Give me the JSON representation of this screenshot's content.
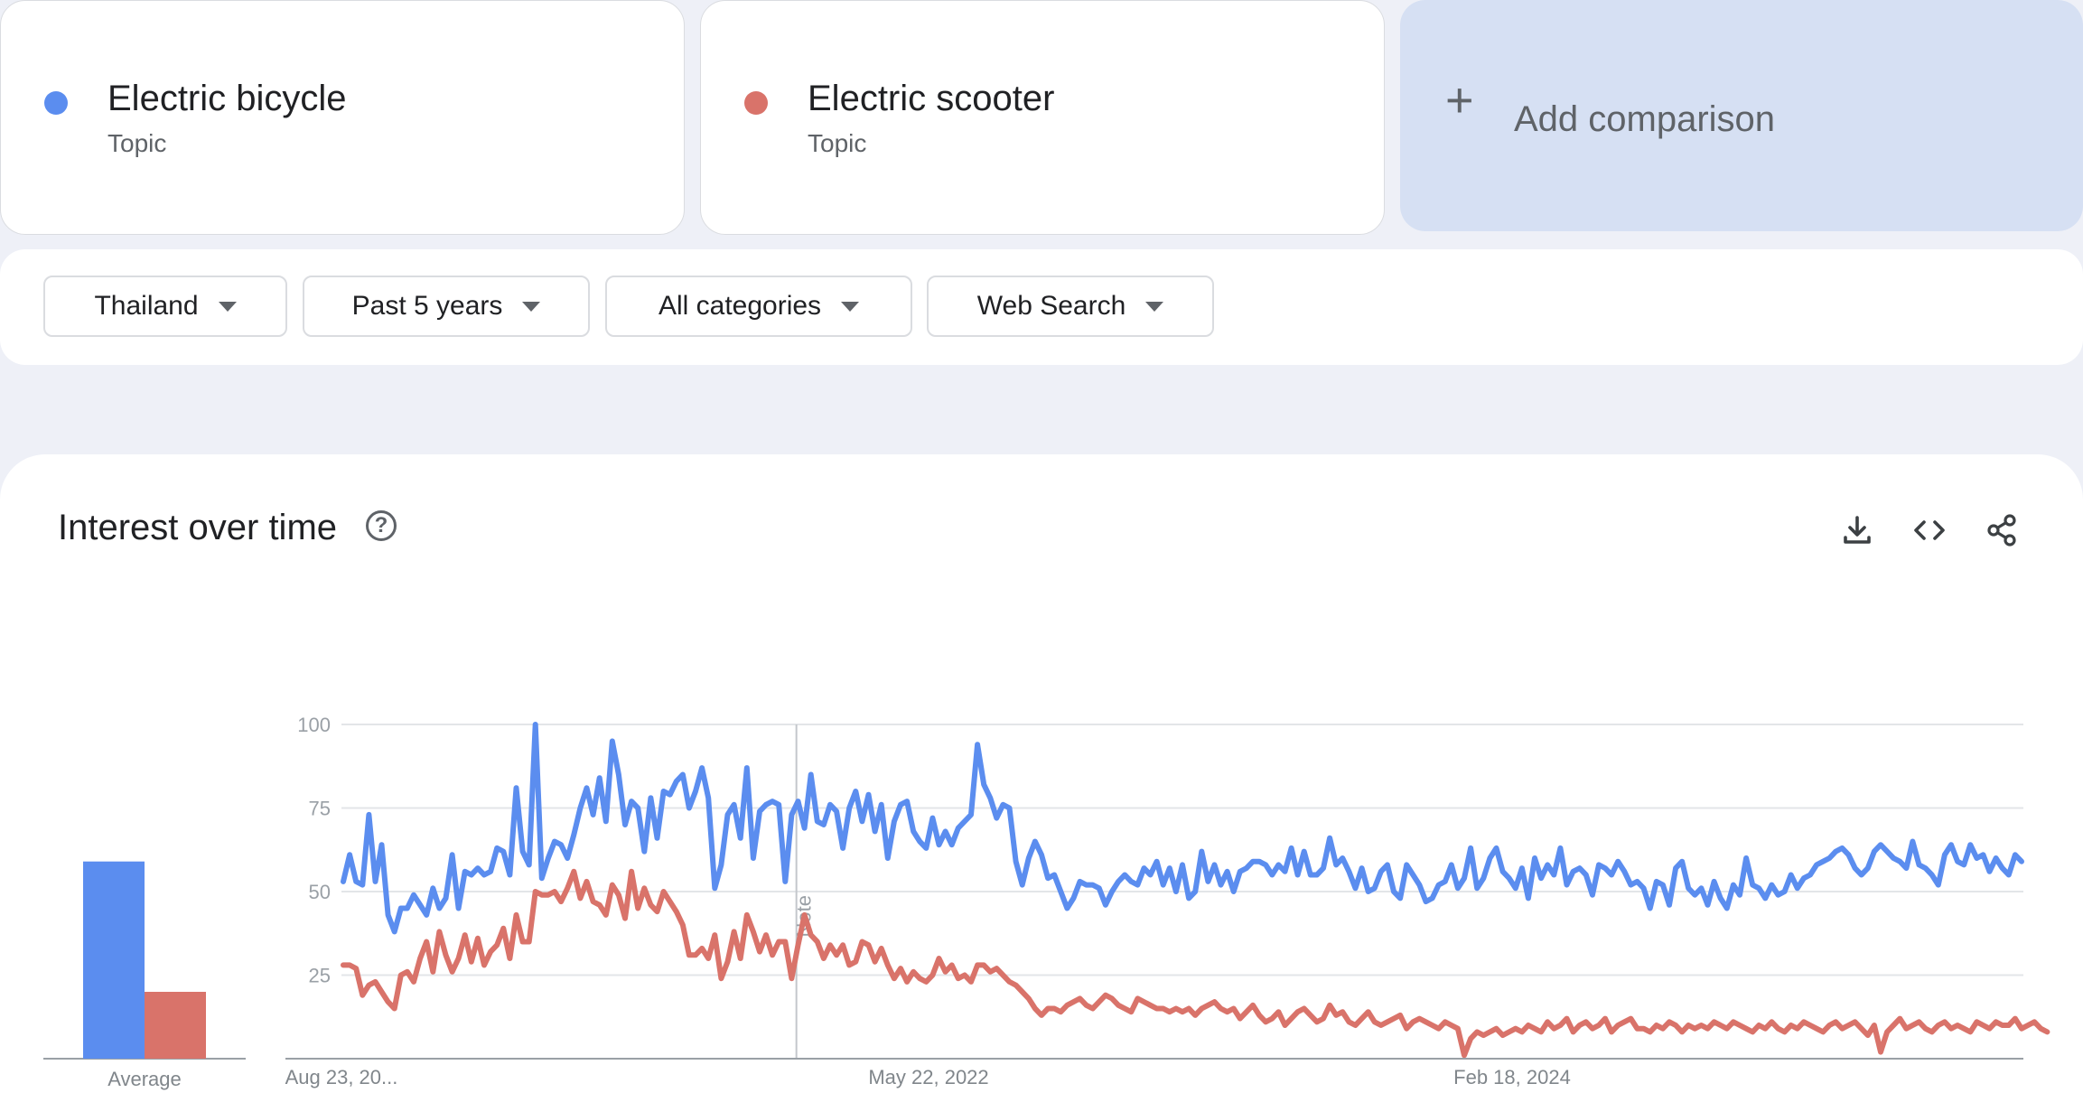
{
  "terms": [
    {
      "name": "Electric bicycle",
      "type": "Topic",
      "color": "#5b8def"
    },
    {
      "name": "Electric scooter",
      "type": "Topic",
      "color": "#d9736a"
    }
  ],
  "add_comparison": {
    "label": "Add comparison",
    "icon": "plus-icon"
  },
  "filters": [
    {
      "label": "Thailand"
    },
    {
      "label": "Past 5 years"
    },
    {
      "label": "All categories"
    },
    {
      "label": "Web Search"
    }
  ],
  "section": {
    "title": "Interest over time",
    "help_icon": "help-circle-icon",
    "help_glyph": "?",
    "tools": [
      "download-icon",
      "embed-code-icon",
      "share-icon"
    ]
  },
  "chart_data": {
    "type": "line",
    "y_ticks": [
      "25",
      "50",
      "75",
      "100"
    ],
    "ylim": [
      0,
      100
    ],
    "x_tick_labels": [
      "Aug 23, 20...",
      "May 22, 2022",
      "Feb 18, 2024"
    ],
    "note_label": "Note",
    "average_label": "Average",
    "averages": [
      59,
      20
    ],
    "series": [
      {
        "color": "#5b8def",
        "values": [
          53,
          61,
          53,
          52,
          73,
          53,
          64,
          43,
          38,
          45,
          45,
          49,
          46,
          43,
          51,
          45,
          48,
          61,
          45,
          56,
          55,
          57,
          55,
          56,
          63,
          62,
          55,
          81,
          62,
          58,
          100,
          54,
          60,
          65,
          64,
          60,
          67,
          75,
          81,
          73,
          84,
          71,
          95,
          85,
          70,
          77,
          75,
          62,
          78,
          66,
          80,
          79,
          83,
          85,
          75,
          80,
          87,
          78,
          51,
          58,
          73,
          76,
          66,
          87,
          60,
          74,
          76,
          77,
          76,
          53,
          73,
          77,
          69,
          85,
          71,
          70,
          76,
          74,
          63,
          75,
          80,
          71,
          79,
          68,
          76,
          60,
          71,
          76,
          77,
          68,
          65,
          63,
          72,
          64,
          68,
          64,
          69,
          71,
          73,
          94,
          82,
          78,
          72,
          76,
          75,
          59,
          52,
          60,
          65,
          61,
          54,
          55,
          50,
          45,
          48,
          53,
          52,
          52,
          51,
          46,
          50,
          53,
          55,
          53,
          52,
          57,
          55,
          59,
          52,
          57,
          50,
          58,
          48,
          50,
          62,
          53,
          58,
          52,
          56,
          50,
          56,
          57,
          59,
          59,
          58,
          55,
          58,
          56,
          63,
          55,
          62,
          55,
          55,
          57,
          66,
          58,
          60,
          56,
          51,
          57,
          50,
          51,
          56,
          58,
          50,
          48,
          58,
          55,
          52,
          47,
          48,
          52,
          53,
          58,
          51,
          54,
          63,
          51,
          54,
          60,
          63,
          56,
          54,
          51,
          57,
          48,
          60,
          54,
          58,
          55,
          63,
          52,
          56,
          57,
          55,
          49,
          58,
          57,
          55,
          59,
          56,
          52,
          53,
          51,
          45,
          53,
          52,
          46,
          57,
          59,
          51,
          49,
          51,
          46,
          53,
          48,
          45,
          52,
          49,
          60,
          52,
          51,
          48,
          52,
          49,
          50,
          55,
          51,
          54,
          55,
          58,
          59,
          60,
          62,
          63,
          61,
          57,
          55,
          57,
          62,
          64,
          62,
          60,
          59,
          57,
          65,
          58,
          57,
          55,
          52,
          61,
          64,
          59,
          58,
          64,
          60,
          61,
          56,
          60,
          57,
          55,
          61,
          59
        ],
        "values_note": "approximate weekly readings"
      },
      {
        "color": "#d9736a",
        "values": [
          28,
          28,
          27,
          19,
          22,
          23,
          20,
          17,
          15,
          25,
          26,
          23,
          30,
          35,
          26,
          38,
          31,
          26,
          30,
          37,
          29,
          36,
          28,
          32,
          34,
          39,
          30,
          43,
          35,
          35,
          50,
          49,
          49,
          50,
          47,
          51,
          56,
          48,
          53,
          47,
          46,
          43,
          52,
          49,
          42,
          56,
          45,
          51,
          46,
          44,
          50,
          47,
          44,
          40,
          31,
          31,
          33,
          30,
          37,
          24,
          29,
          38,
          30,
          43,
          38,
          32,
          37,
          31,
          35,
          35,
          24,
          34,
          43,
          37,
          35,
          30,
          34,
          31,
          34,
          28,
          29,
          35,
          34,
          29,
          33,
          28,
          24,
          27,
          23,
          26,
          24,
          23,
          25,
          30,
          26,
          28,
          24,
          25,
          23,
          28,
          28,
          26,
          27,
          25,
          23,
          22,
          20,
          18,
          15,
          13,
          15,
          15,
          14,
          16,
          17,
          18,
          16,
          15,
          17,
          19,
          18,
          16,
          15,
          14,
          18,
          17,
          16,
          15,
          15,
          14,
          15,
          14,
          15,
          13,
          15,
          16,
          17,
          15,
          14,
          15,
          12,
          14,
          16,
          13,
          11,
          12,
          14,
          10,
          12,
          14,
          15,
          13,
          11,
          12,
          16,
          13,
          14,
          11,
          10,
          12,
          14,
          11,
          10,
          11,
          12,
          13,
          9,
          11,
          12,
          11,
          10,
          9,
          11,
          10,
          9,
          1,
          6,
          8,
          7,
          8,
          9,
          7,
          8,
          9,
          8,
          10,
          9,
          8,
          11,
          9,
          10,
          12,
          8,
          10,
          11,
          9,
          10,
          12,
          8,
          10,
          11,
          12,
          9,
          9,
          8,
          10,
          9,
          11,
          10,
          8,
          10,
          9,
          10,
          9,
          11,
          10,
          9,
          11,
          10,
          9,
          8,
          10,
          9,
          11,
          9,
          8,
          10,
          9,
          11,
          10,
          9,
          8,
          10,
          11,
          9,
          10,
          11,
          9,
          7,
          10,
          2,
          8,
          10,
          12,
          9,
          10,
          11,
          9,
          8,
          10,
          11,
          9,
          10,
          9,
          8,
          11,
          10,
          9,
          11,
          10,
          10,
          12,
          9,
          10,
          11,
          9,
          8
        ],
        "values_note": "approximate weekly readings"
      }
    ]
  }
}
